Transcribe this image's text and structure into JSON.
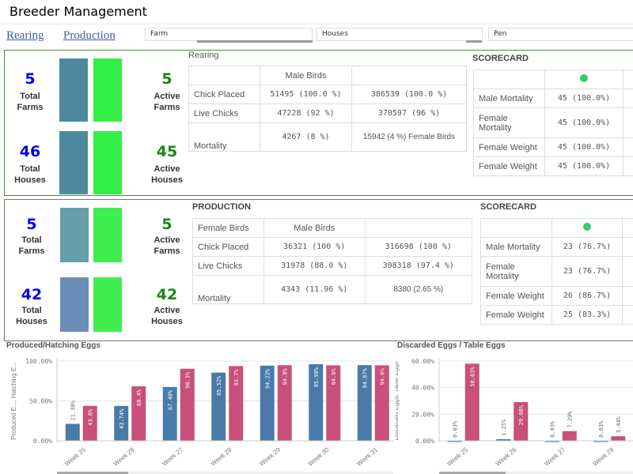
{
  "app": {
    "title": "Breeder Management"
  },
  "nav": [
    {
      "label": "Rearing"
    },
    {
      "label": "Production"
    }
  ],
  "filters": [
    {
      "label": "Farm"
    },
    {
      "label": "Houses"
    },
    {
      "label": "Pen"
    }
  ],
  "colors": {
    "total_num": "#0000ee",
    "active_num": "#138a13",
    "bar_green": "#33ee44",
    "bar_blue": "#4a7aa8",
    "bar_red": "#c8507a",
    "dot": "#33cc66"
  },
  "rearing": {
    "kpis": {
      "total_farms": "5",
      "total_farms_label": "Total Farms",
      "active_farms": "5",
      "active_farms_label": "Active Farms",
      "total_houses": "46",
      "total_houses_label": "Total Houses",
      "active_houses": "45",
      "active_houses_label": "Active Houses"
    },
    "table_title": "Rearing",
    "table": {
      "header": [
        "",
        "Male Birds",
        ""
      ],
      "rows": [
        [
          "Chick Placed",
          "51495 (100.0 %)",
          "386539 (100.0 %)"
        ],
        [
          "Live Chicks",
          "47228 (92 %)",
          "370597 (96 %)"
        ],
        [
          "Mortality",
          "4267 (8 %)",
          "15942 (4 %) Female Birds"
        ]
      ]
    },
    "scorecard_title": "SCORECARD",
    "scorecard": [
      [
        "Male Mortality",
        "45 (100.0%)"
      ],
      [
        "Female Mortality",
        "45 (100.0%)"
      ],
      [
        "Female Weight",
        "45 (100.0%)"
      ],
      [
        "Female Weight",
        "45 (100.0%)"
      ]
    ]
  },
  "production": {
    "kpis": {
      "total_farms": "5",
      "total_farms_label": "Total Farms",
      "active_farms": "5",
      "active_farms_label": "Active Farms",
      "total_houses": "42",
      "total_houses_label": "Total Houses",
      "active_houses": "42",
      "active_houses_label": "Active Houses"
    },
    "table_title": "PRODUCTION",
    "table": {
      "header": [
        "Female Birds",
        "Male Birds",
        ""
      ],
      "rows": [
        [
          "Chick Placed",
          "36321 (100 %)",
          "316698 (100 %)"
        ],
        [
          "Live Chicks",
          "31978 (88.0 %)",
          "308318 (97.4 %)"
        ],
        [
          "Mortality",
          "4343 (11.96 %)",
          "8380 (2.65 %)"
        ]
      ]
    },
    "scorecard_title": "SCORECARD",
    "scorecard": [
      [
        "Male Mortality",
        "23 (76.7%)"
      ],
      [
        "Female Mortality",
        "23 (76.7%)"
      ],
      [
        "Female Weight",
        "26 (86.7%)"
      ],
      [
        "Female Weight",
        "25 (83.3%)"
      ]
    ]
  },
  "chart_data": [
    {
      "type": "bar",
      "title": "Produced/Hatching Eggs",
      "ylabel": "Produced E..., Hatching E...",
      "ylim": [
        0,
        100
      ],
      "yticks": [
        "0.00%",
        "50.00%",
        "100.00%"
      ],
      "categories": [
        "Week 25",
        "Week 26",
        "Week 27",
        "Week 28",
        "Week 29",
        "Week 30",
        "Week 31"
      ],
      "series": [
        {
          "values": [
            21.3,
            43.74,
            67.48,
            85.52,
            94.22,
            95.98,
            94.87
          ],
          "labels": [
            "21.30%",
            "43.74%",
            "67.48%",
            "85.52%",
            "94.22%",
            "95.98%",
            "94.87%"
          ]
        },
        {
          "values": [
            43.8,
            68.4,
            90.3,
            93.7,
            94.8,
            94.6,
            94.6
          ],
          "labels": [
            "43.8%",
            "68.4%",
            "90.3%",
            "93.7%",
            "94.8%",
            "94.6%",
            "94.6%"
          ]
        }
      ],
      "grid": true
    },
    {
      "type": "bar",
      "title": "Discarded Eggs / Table Eggs",
      "ylabel": "Discarded Eggs, Table Eggs",
      "ylim": [
        0,
        60
      ],
      "yticks": [
        "0.00%",
        "20.00%",
        "40.00%",
        "60.00%"
      ],
      "categories": [
        "Week 25",
        "Week 26",
        "Week 27",
        "Week 28"
      ],
      "series": [
        {
          "values": [
            0.03,
            1.25,
            0.03,
            0.03
          ],
          "labels": [
            "0.03%",
            "1.25%",
            "0.03%",
            "0.03%"
          ]
        },
        {
          "values": [
            58.03,
            29.08,
            7.29,
            3.44
          ],
          "labels": [
            "58.03%",
            "29.08%",
            "7.29%",
            "3.44%"
          ]
        }
      ],
      "grid": true
    }
  ]
}
